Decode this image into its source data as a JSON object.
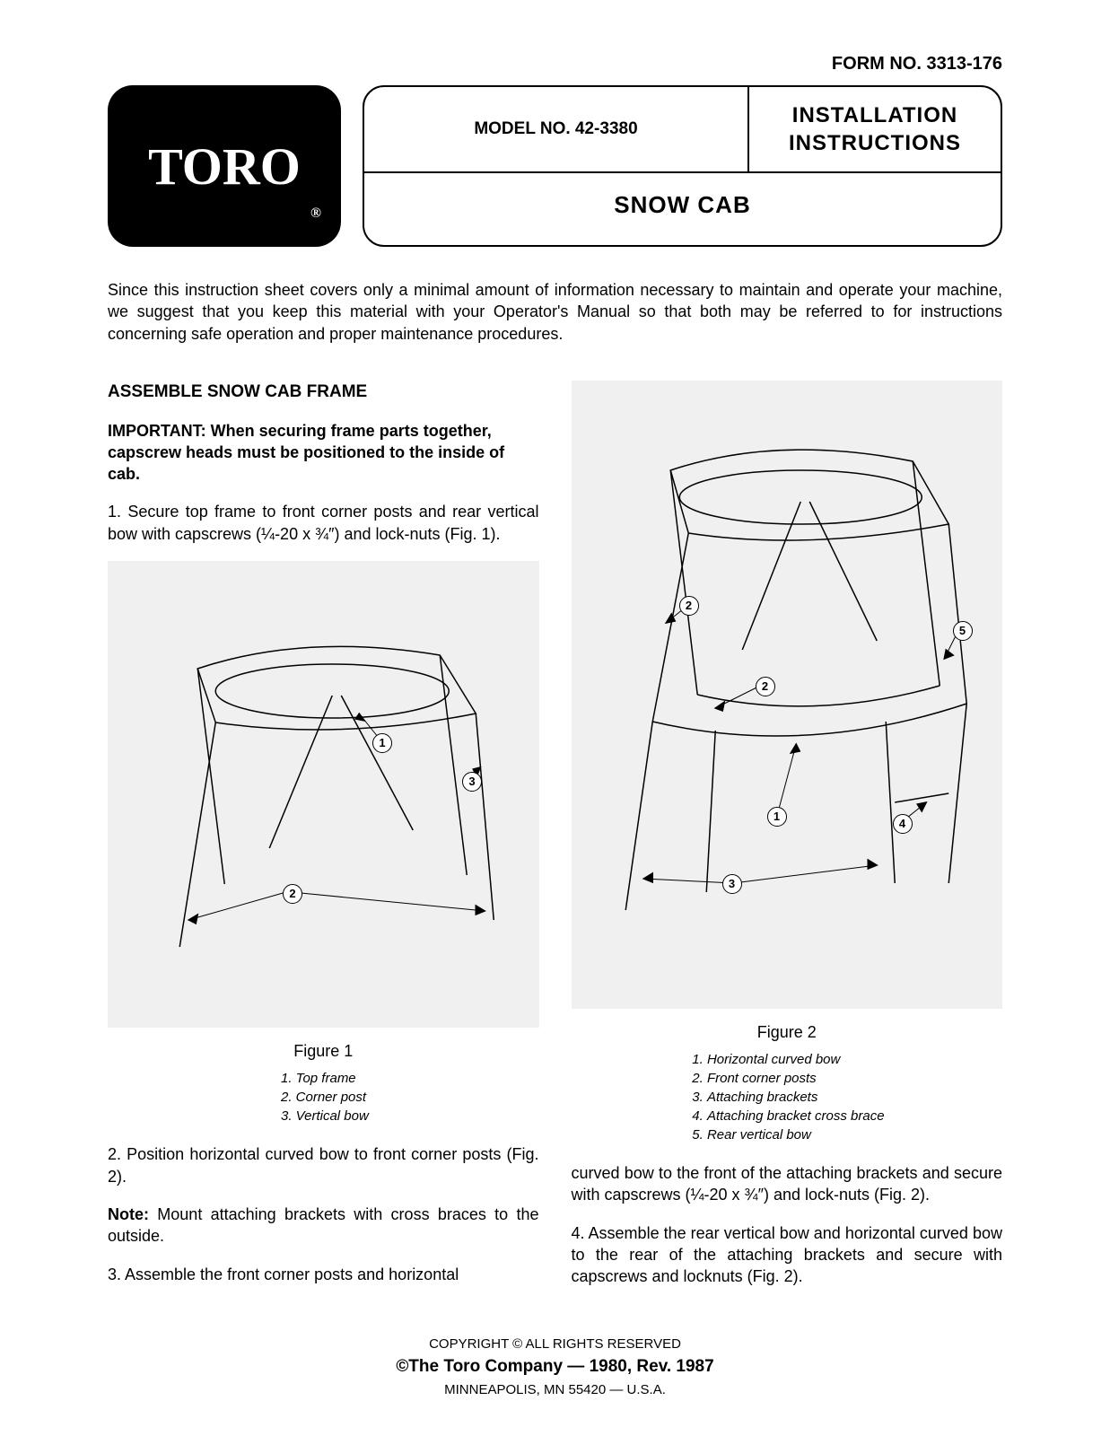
{
  "form_no": "FORM NO. 3313-176",
  "logo_text": "TORO",
  "logo_reg": "®",
  "model_label": "MODEL NO. 42-3380",
  "doc_title": "INSTALLATION INSTRUCTIONS",
  "product_name": "SNOW CAB",
  "intro": "Since this instruction sheet covers only a minimal amount of information necessary to maintain and operate your machine, we suggest that you keep this material with your Operator's Manual so that both may be referred to for instructions concerning safe operation and proper maintenance procedures.",
  "section_heading": "ASSEMBLE SNOW CAB FRAME",
  "important": "IMPORTANT: When securing frame parts together, capscrew heads must be positioned to the inside of cab.",
  "step1": "1.  Secure top frame to front corner posts and rear vertical bow with capscrews (¼-20 x ¾″) and lock-nuts (Fig. 1).",
  "fig1_caption": "Figure 1",
  "fig1_legend": [
    "Top frame",
    "Corner post",
    "Vertical bow"
  ],
  "step2": "2.  Position horizontal curved bow to front corner posts (Fig. 2).",
  "note": "Note: Mount attaching brackets with cross braces to the outside.",
  "step3": "3.  Assemble the front corner posts and horizontal",
  "fig2_caption": "Figure 2",
  "fig2_legend": [
    "Horizontal curved bow",
    "Front corner posts",
    "Attaching brackets",
    "Attaching bracket cross brace",
    "Rear vertical bow"
  ],
  "step3_cont": "curved bow to the front of the attaching brackets and secure with capscrews (¼-20 x ¾″) and lock-nuts (Fig. 2).",
  "step4": "4.  Assemble the rear vertical bow and horizontal curved bow to the rear of the attaching brackets and secure with capscrews and locknuts (Fig. 2).",
  "footer_copyright": "COPYRIGHT © ALL RIGHTS RESERVED",
  "footer_company": "©The Toro Company — 1980, Rev. 1987",
  "footer_location": "MINNEAPOLIS, MN 55420 — U.S.A."
}
